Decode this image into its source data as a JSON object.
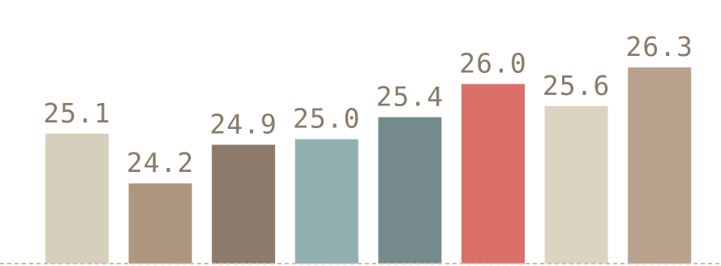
{
  "chart_data": {
    "type": "bar",
    "categories": [
      "",
      "",
      "",
      "",
      "",
      "",
      "",
      ""
    ],
    "values": [
      25.1,
      24.2,
      24.9,
      25.0,
      25.4,
      26.0,
      25.6,
      26.3
    ],
    "value_labels": [
      "25.1",
      "24.2",
      "24.9",
      "25.0",
      "25.4",
      "26.0",
      "25.6",
      "26.3"
    ],
    "colors": [
      "#d6cfbb",
      "#ad977e",
      "#8c7a6a",
      "#93b0b1",
      "#758b8b",
      "#da7067",
      "#dbd4c1",
      "#b8a28d"
    ],
    "ylim": [
      22.75,
      27.3
    ],
    "grid": false,
    "baseline_style": "dashed",
    "baseline_color": "#c9bfa9",
    "title": "",
    "xlabel": "",
    "ylabel": ""
  }
}
